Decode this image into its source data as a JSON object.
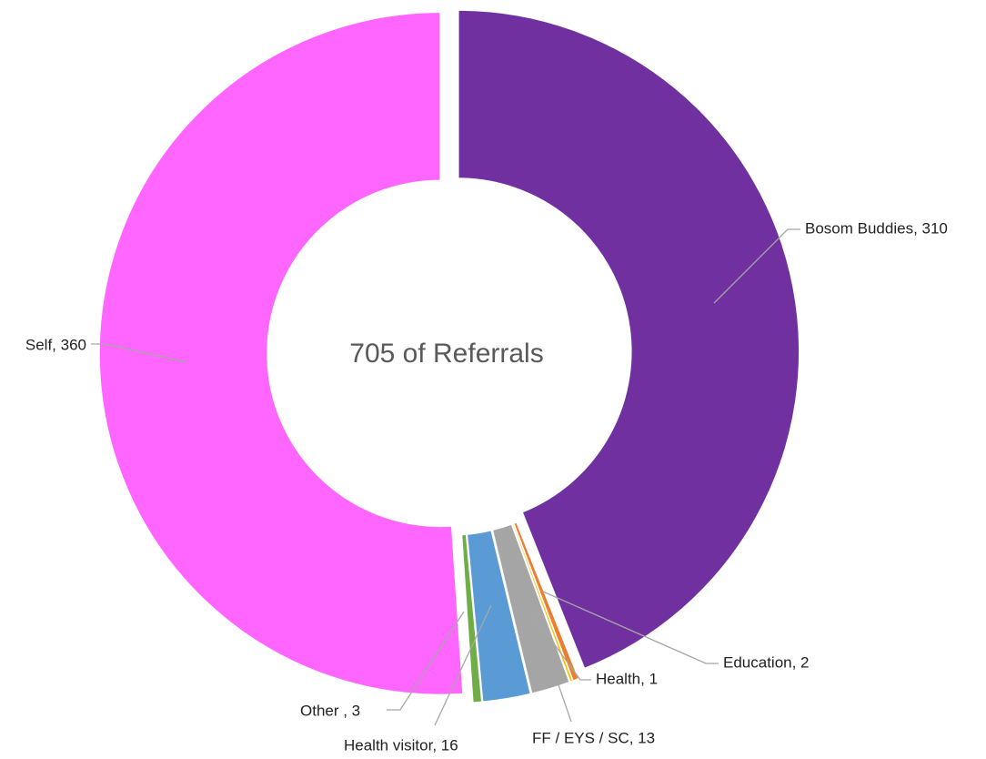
{
  "chart_data": {
    "type": "donut",
    "center_label": "705 of Referrals",
    "values": [
      310,
      2,
      1,
      13,
      16,
      3,
      360
    ],
    "value_labels": [
      "Bosom Buddies, 310",
      "Education, 2",
      "Health, 1",
      "FF / EYS / SC, 13",
      "Health visitor, 16",
      "Other , 3",
      "Self, 360"
    ],
    "colors": [
      "#7030a0",
      "#ed7d31",
      "#ffc000",
      "#a5a5a5",
      "#5b9bd5",
      "#70ad47",
      "#ff66ff"
    ]
  }
}
